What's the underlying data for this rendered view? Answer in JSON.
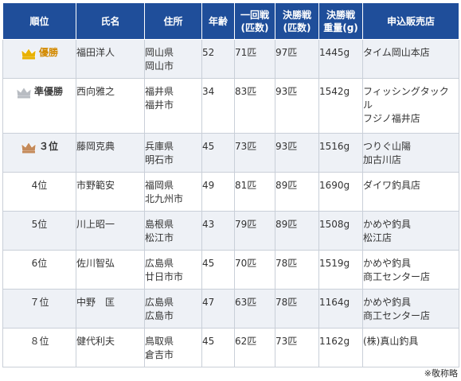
{
  "table": {
    "headers": [
      "順位",
      "氏名",
      "住所",
      "年齢",
      "一回戦\n(匹数)",
      "決勝戦\n(匹数)",
      "決勝戦\n重量(g)",
      "申込販売店"
    ],
    "header_lines": [
      [
        "順位"
      ],
      [
        "氏名"
      ],
      [
        "住所"
      ],
      [
        "年齢"
      ],
      [
        "一回戦",
        "(匹数)"
      ],
      [
        "決勝戦",
        "(匹数)"
      ],
      [
        "決勝戦",
        "重量(g)"
      ],
      [
        "申込販売店"
      ]
    ],
    "rows": [
      {
        "rank": "優勝",
        "crown": "gold-crown-icon",
        "name": "福田洋人",
        "address": [
          "岡山県",
          "岡山市"
        ],
        "age": "52",
        "round1": "71匹",
        "final_count": "97匹",
        "final_weight": "1445g",
        "shop": [
          "タイム岡山本店"
        ]
      },
      {
        "rank": "準優勝",
        "crown": "silver-crown-icon",
        "name": "西向雅之",
        "address": [
          "福井県",
          "福井市"
        ],
        "age": "34",
        "round1": "83匹",
        "final_count": "93匹",
        "final_weight": "1542g",
        "shop": [
          "フィッシングタック",
          "ル",
          "フジノ福井店"
        ]
      },
      {
        "rank": "３位",
        "crown": "bronze-crown-icon",
        "name": "藤岡克典",
        "address": [
          "兵庫県",
          "明石市"
        ],
        "age": "45",
        "round1": "73匹",
        "final_count": "93匹",
        "final_weight": "1516g",
        "shop": [
          "つりぐ山陽",
          "加古川店"
        ]
      },
      {
        "rank": "4位",
        "crown": "",
        "name": "市野範安",
        "address": [
          "福岡県",
          "北九州市"
        ],
        "age": "49",
        "round1": "81匹",
        "final_count": "89匹",
        "final_weight": "1690g",
        "shop": [
          "ダイワ釣具店"
        ]
      },
      {
        "rank": "5位",
        "crown": "",
        "name": "川上昭一",
        "address": [
          "島根県",
          "松江市"
        ],
        "age": "43",
        "round1": "79匹",
        "final_count": "89匹",
        "final_weight": "1508g",
        "shop": [
          "かめや釣具",
          "松江店"
        ]
      },
      {
        "rank": "6位",
        "crown": "",
        "name": "佐川智弘",
        "address": [
          "広島県",
          "廿日市市"
        ],
        "age": "45",
        "round1": "70匹",
        "final_count": "78匹",
        "final_weight": "1519g",
        "shop": [
          "かめや釣具",
          "商工センター店"
        ]
      },
      {
        "rank": "７位",
        "crown": "",
        "name": "中野　匡",
        "address": [
          "広島県",
          "広島市"
        ],
        "age": "47",
        "round1": "63匹",
        "final_count": "78匹",
        "final_weight": "1164g",
        "shop": [
          "かめや釣具",
          "商工センター店"
        ]
      },
      {
        "rank": "８位",
        "crown": "",
        "name": "健代利夫",
        "address": [
          "鳥取県",
          "倉吉市"
        ],
        "age": "45",
        "round1": "62匹",
        "final_count": "73匹",
        "final_weight": "1162g",
        "shop": [
          "(株)真山釣具"
        ]
      }
    ]
  },
  "footnote": "※敬称略",
  "colors": {
    "header_bg": "#1f4e9a",
    "header_text": "#ffffff",
    "row_alt_bg": "#eef1f6",
    "border": "#c9cfd8",
    "gold": "#e8b100",
    "silver": "#b8bcc2",
    "bronze": "#c48a5a"
  }
}
